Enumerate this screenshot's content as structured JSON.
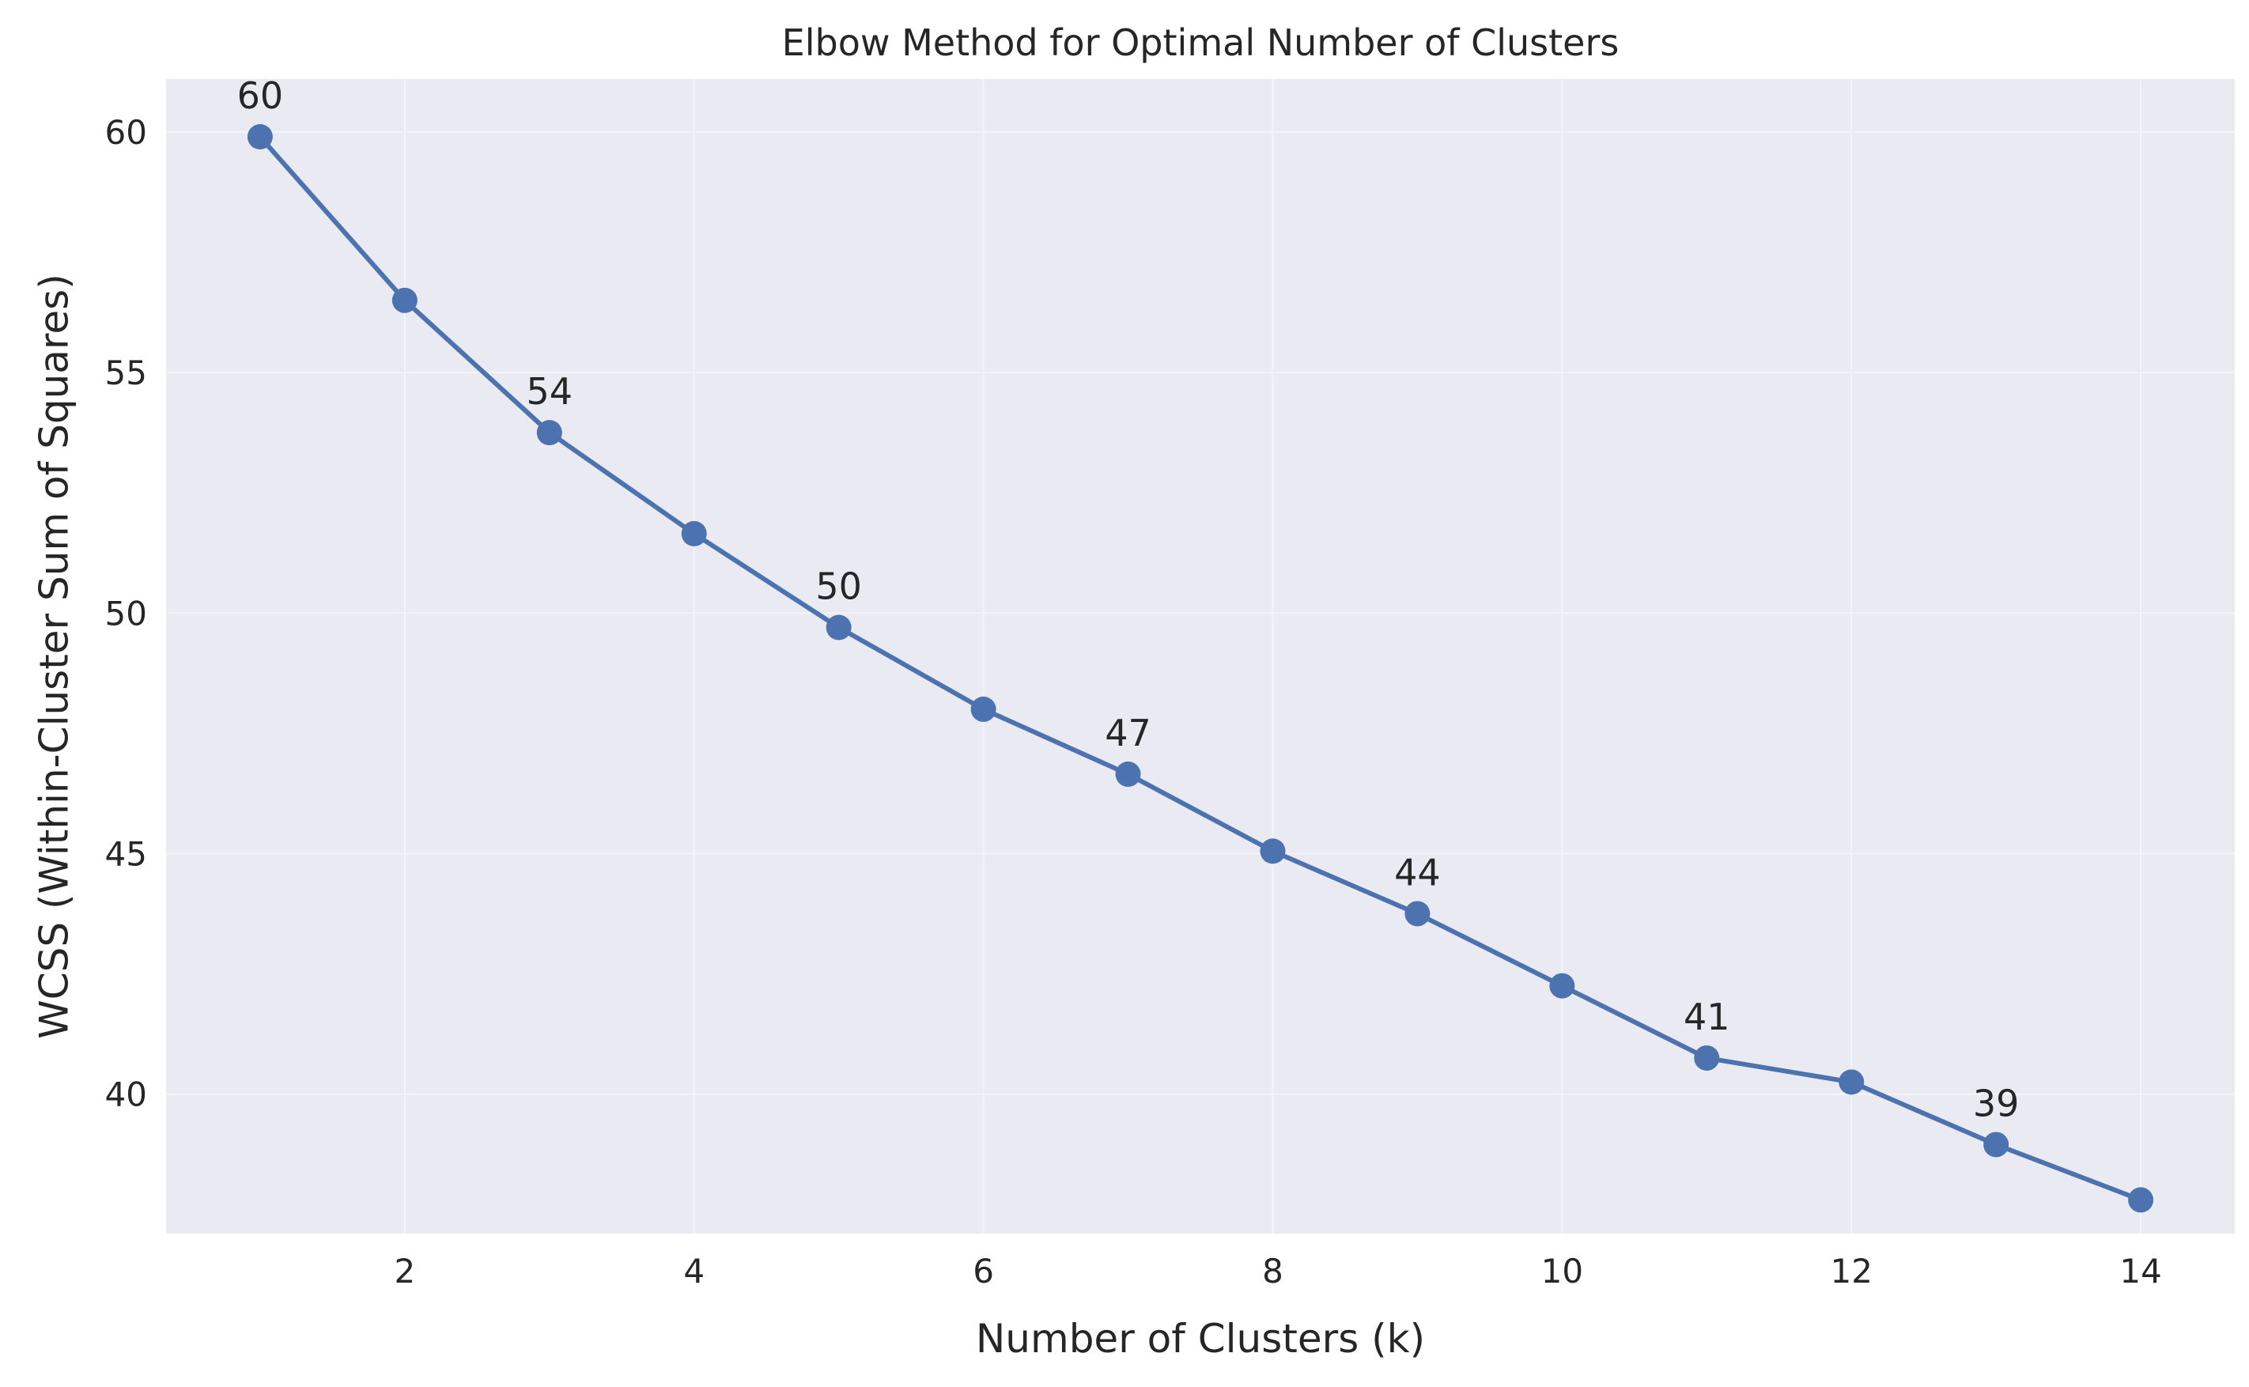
{
  "chart_data": {
    "type": "line",
    "title": "Elbow Method for Optimal Number of Clusters",
    "xlabel": "Number of Clusters (k)",
    "ylabel": "WCSS (Within-Cluster Sum of Squares)",
    "xlim": [
      0.35,
      14.65
    ],
    "ylim": [
      37.1,
      61.1
    ],
    "xticks": [
      2,
      4,
      6,
      8,
      10,
      12,
      14
    ],
    "yticks": [
      40,
      45,
      50,
      55,
      60
    ],
    "grid": true,
    "series": [
      {
        "x": [
          1,
          2,
          3,
          4,
          5,
          6,
          7,
          8,
          9,
          10,
          11,
          12,
          13,
          14
        ],
        "values": [
          59.9,
          56.5,
          53.75,
          51.65,
          49.7,
          48.0,
          46.65,
          45.05,
          43.75,
          42.25,
          40.75,
          40.25,
          38.95,
          37.8
        ]
      }
    ],
    "annotations": [
      {
        "x": 1,
        "y": 59.9,
        "text": "60"
      },
      {
        "x": 3,
        "y": 53.75,
        "text": "54"
      },
      {
        "x": 5,
        "y": 49.7,
        "text": "50"
      },
      {
        "x": 7,
        "y": 46.65,
        "text": "47"
      },
      {
        "x": 9,
        "y": 43.75,
        "text": "44"
      },
      {
        "x": 11,
        "y": 40.75,
        "text": "41"
      },
      {
        "x": 13,
        "y": 38.95,
        "text": "39"
      }
    ],
    "colors": {
      "line": "#4c72b0",
      "plot_background": "#eaeaf2",
      "grid": "#f4f4f8"
    }
  }
}
